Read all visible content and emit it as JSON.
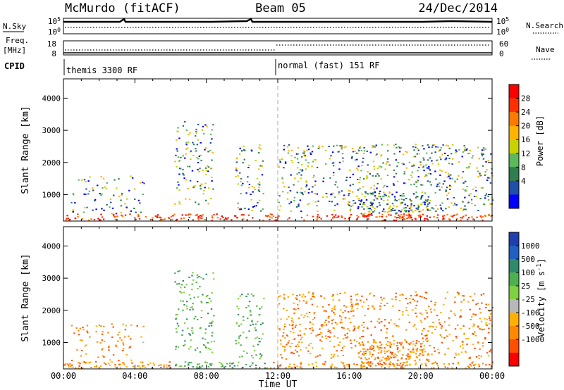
{
  "header": {
    "title": "McMurdo (fitACF)",
    "beam": "Beam 05",
    "date": "24/Dec/2014"
  },
  "top_panels": {
    "nsky_label": "N.Sky",
    "nsearch_label": "N.Search",
    "nsky_ticks": [
      "10^5",
      "10^0"
    ],
    "nsearch_ticks": [
      "10^5",
      "10^0"
    ],
    "freq_label": "Freq.",
    "freq_unit": "[MHz]",
    "freq_ticks": [
      "18",
      "8"
    ],
    "nave_label": "Nave",
    "nave_ticks": [
      "60",
      "0"
    ],
    "cpid_label": "CPID",
    "cpid_segments": [
      {
        "label": "themis 3300 RF",
        "start_hour": 0
      },
      {
        "label": "normal (fast) 151 RF",
        "start_hour": 12
      }
    ]
  },
  "chart_data": [
    {
      "type": "heatmap",
      "name": "power",
      "ylabel": "Slant Range [km]",
      "xlabel": "",
      "yticks": [
        1000,
        2000,
        3000,
        4000
      ],
      "ylim": [
        180,
        4600
      ],
      "xlim": [
        0,
        24
      ],
      "colorbar_label": "Power [dB]",
      "colorbar_ticks": [
        "28",
        "24",
        "20",
        "16",
        "12",
        "8",
        "4"
      ],
      "colorbar_colors": [
        "#ff0000",
        "#ff3000",
        "#ff7a00",
        "#ffb300",
        "#c8d200",
        "#5cb85c",
        "#2f7d50",
        "#1f4fa8",
        "#0000ff"
      ]
    },
    {
      "type": "heatmap",
      "name": "velocity",
      "ylabel": "Slant Range [km]",
      "xlabel": "Time UT",
      "yticks": [
        1000,
        2000,
        3000,
        4000
      ],
      "ylim": [
        180,
        4600
      ],
      "xlim": [
        0,
        24
      ],
      "xticks": [
        "00:00",
        "04:00",
        "08:00",
        "12:00",
        "16:00",
        "20:00",
        "00:00"
      ],
      "colorbar_label": "Velocity [m s^-1]",
      "colorbar_ticks": [
        "1000",
        "500",
        "100",
        "25",
        "-25",
        "-100",
        "-500",
        "-1000"
      ],
      "colorbar_colors": [
        "#1f3fb0",
        "#2060c0",
        "#2f8a6a",
        "#4caf50",
        "#80d040",
        "#b8b8b8",
        "#ffb000",
        "#ff8a00",
        "#ff5000",
        "#ff0000"
      ]
    }
  ]
}
